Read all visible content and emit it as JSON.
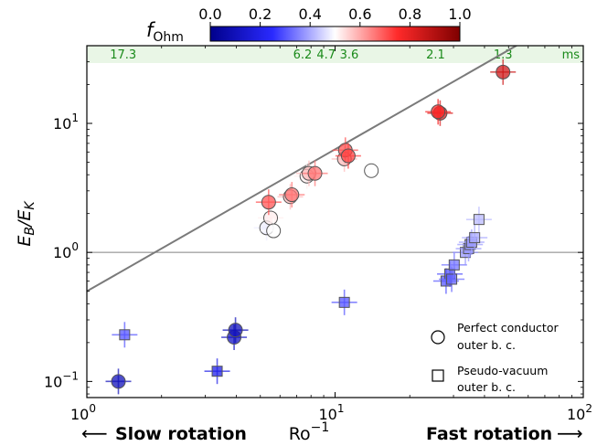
{
  "colorbar": {
    "label_main": "f",
    "label_sub": "Ohm",
    "ticks": [
      "0.0",
      "0.2",
      "0.4",
      "0.6",
      "0.8",
      "1.0"
    ],
    "colors": {
      "low": "#00008b",
      "mid": "#ffffff",
      "high": "#7f0000"
    }
  },
  "band": {
    "labels": [
      "17.3",
      "6.2",
      "4.7",
      "3.6",
      "2.1",
      "1.3"
    ],
    "unit": "ms",
    "color": "#e9f6e6",
    "text_color": "#1a8a1a"
  },
  "axes": {
    "x_ticks": [
      {
        "base": "10",
        "exp": "0"
      },
      {
        "base": "10",
        "exp": "1"
      },
      {
        "base": "10",
        "exp": "2"
      }
    ],
    "y_ticks": [
      {
        "base": "10",
        "exp": "−1"
      },
      {
        "base": "10",
        "exp": "0"
      },
      {
        "base": "10",
        "exp": "1"
      }
    ],
    "x_label_main": "Ro",
    "x_label_sup": "−1",
    "y_label": "E_B/E_K"
  },
  "bottom": {
    "left_arrow": "⟵",
    "left_text": "Slow rotation",
    "right_text": "Fast rotation",
    "right_arrow": "⟶"
  },
  "legend": {
    "circle_line1": "Perfect conductor",
    "circle_line2": "outer b. c.",
    "square_line1": "Pseudo-vacuum",
    "square_line2": "outer b. c."
  },
  "chart_data": {
    "type": "scatter",
    "xscale": "log",
    "yscale": "log",
    "xlim": [
      1,
      100
    ],
    "ylim": [
      0.075,
      40
    ],
    "xlabel": "Ro^-1",
    "ylabel": "E_B/E_K",
    "hline": 1.0,
    "fit_line": {
      "slope": 1.1,
      "intercept_at_x1": 0.5,
      "color": "#808080"
    },
    "band_positions": [
      1.4,
      7.4,
      9.2,
      11.4,
      25.4,
      47.5
    ],
    "series": [
      {
        "marker": "circle",
        "points": [
          {
            "x": 1.34,
            "y": 0.1,
            "f": 0.1
          },
          {
            "x": 3.92,
            "y": 0.22,
            "f": 0.12
          },
          {
            "x": 3.97,
            "y": 0.25,
            "f": 0.1
          },
          {
            "x": 5.3,
            "y": 1.55,
            "f": 0.48
          },
          {
            "x": 5.5,
            "y": 1.85,
            "f": 0.52
          },
          {
            "x": 5.65,
            "y": 1.47,
            "f": 0.5
          },
          {
            "x": 5.4,
            "y": 2.45,
            "f": 0.7
          },
          {
            "x": 6.6,
            "y": 2.7,
            "f": 0.58
          },
          {
            "x": 6.7,
            "y": 2.8,
            "f": 0.66
          },
          {
            "x": 7.7,
            "y": 3.9,
            "f": 0.52
          },
          {
            "x": 7.85,
            "y": 4.1,
            "f": 0.58
          },
          {
            "x": 8.3,
            "y": 4.1,
            "f": 0.66
          },
          {
            "x": 10.9,
            "y": 5.3,
            "f": 0.58
          },
          {
            "x": 11.0,
            "y": 6.2,
            "f": 0.7
          },
          {
            "x": 11.3,
            "y": 5.6,
            "f": 0.72
          },
          {
            "x": 14.0,
            "y": 4.3,
            "f": 0.5
          },
          {
            "x": 26.5,
            "y": 12.0,
            "f": 0.82
          },
          {
            "x": 26.0,
            "y": 12.3,
            "f": 0.76
          },
          {
            "x": 47.5,
            "y": 25.0,
            "f": 0.85
          }
        ]
      },
      {
        "marker": "square",
        "points": [
          {
            "x": 1.42,
            "y": 0.23,
            "f": 0.3
          },
          {
            "x": 3.35,
            "y": 0.12,
            "f": 0.2
          },
          {
            "x": 10.9,
            "y": 0.41,
            "f": 0.3
          },
          {
            "x": 28.0,
            "y": 0.6,
            "f": 0.3
          },
          {
            "x": 29.0,
            "y": 0.68,
            "f": 0.3
          },
          {
            "x": 29.5,
            "y": 0.62,
            "f": 0.32
          },
          {
            "x": 30.2,
            "y": 0.8,
            "f": 0.34
          },
          {
            "x": 33.5,
            "y": 1.0,
            "f": 0.38
          },
          {
            "x": 34.5,
            "y": 1.07,
            "f": 0.38
          },
          {
            "x": 35.0,
            "y": 1.15,
            "f": 0.38
          },
          {
            "x": 35.5,
            "y": 1.2,
            "f": 0.38
          },
          {
            "x": 36.5,
            "y": 1.3,
            "f": 0.4
          },
          {
            "x": 38.0,
            "y": 1.8,
            "f": 0.42
          }
        ]
      }
    ]
  }
}
